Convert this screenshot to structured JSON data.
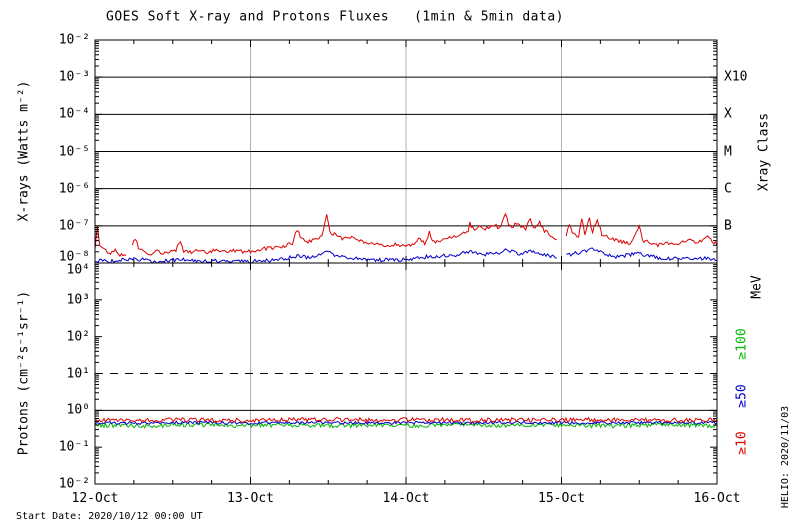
{
  "title": "GOES Soft X-ray and Protons Fluxes   (1min & 5min data)",
  "footer": {
    "start_date": "Start Date: 2020/10/12 00:00 UT",
    "credit": "HELIO: 2020/11/03"
  },
  "colors": {
    "xray_long": "#dd0000",
    "xray_short": "#0000cc",
    "protons_ge10": "#dd0000",
    "protons_ge50": "#0000cc",
    "protons_ge100": "#00bb00",
    "grid": "#b3b3b3",
    "axis": "#000000"
  },
  "chart_data": {
    "type": "line",
    "title": "GOES Soft X-ray and Protons Fluxes   (1min & 5min data)",
    "x_axis": {
      "start_date": "2020/10/12 00:00 UT",
      "span_days": 4,
      "minor_tick_hours": 6,
      "ticks": [
        {
          "label": "12-Oct",
          "day": 0
        },
        {
          "label": "13-Oct",
          "day": 1
        },
        {
          "label": "14-Oct",
          "day": 2
        },
        {
          "label": "15-Oct",
          "day": 3
        },
        {
          "label": "16-Oct",
          "day": 4
        }
      ],
      "gridline_days": [
        1,
        2,
        3
      ]
    },
    "panels": {
      "xray": {
        "ylabel": "X-rays (Watts m⁻²)",
        "right_label": "Xray Class",
        "ylog_range": [
          -8,
          -2
        ],
        "yticks": [
          {
            "label": "10⁻²",
            "log": -2
          },
          {
            "label": "10⁻³",
            "log": -3
          },
          {
            "label": "10⁻⁴",
            "log": -4
          },
          {
            "label": "10⁻⁵",
            "log": -5
          },
          {
            "label": "10⁻⁶",
            "log": -6
          },
          {
            "label": "10⁻⁷",
            "log": -7
          },
          {
            "label": "10⁻⁸",
            "log": -8
          }
        ],
        "class_lines": [
          {
            "label": "X10",
            "log": -3
          },
          {
            "label": "X",
            "log": -4
          },
          {
            "label": "M",
            "log": -5
          },
          {
            "label": "C",
            "log": -6
          },
          {
            "label": "B",
            "log": -7
          }
        ],
        "series": [
          {
            "name": "xray-short-wave",
            "color": "#0000cc",
            "noise": 0.05,
            "points": [
              [
                0.0,
                1.15e-08
              ],
              [
                0.1,
                1.1e-08
              ],
              [
                0.25,
                1.3e-08
              ],
              [
                0.4,
                1.1e-08
              ],
              [
                0.55,
                1.25e-08
              ],
              [
                0.7,
                1.1e-08
              ],
              [
                0.85,
                1.15e-08
              ],
              [
                1.0,
                1.1e-08
              ],
              [
                1.15,
                1.2e-08
              ],
              [
                1.3,
                1.5e-08
              ],
              [
                1.42,
                1.4e-08
              ],
              [
                1.49,
                2.2e-08
              ],
              [
                1.55,
                1.5e-08
              ],
              [
                1.7,
                1.3e-08
              ],
              [
                1.85,
                1.2e-08
              ],
              [
                2.0,
                1.25e-08
              ],
              [
                2.15,
                1.5e-08
              ],
              [
                2.3,
                1.6e-08
              ],
              [
                2.41,
                2e-08
              ],
              [
                2.5,
                1.7e-08
              ],
              [
                2.6,
                1.9e-08
              ],
              [
                2.64,
                2.4e-08
              ],
              [
                2.72,
                1.8e-08
              ],
              [
                2.8,
                2e-08
              ],
              [
                2.9,
                1.6e-08
              ],
              [
                2.97,
                1.4e-08
              ],
              null,
              [
                3.03,
                1.6e-08
              ],
              [
                3.13,
                2e-08
              ],
              [
                3.2,
                2.5e-08
              ],
              [
                3.27,
                1.8e-08
              ],
              [
                3.35,
                1.5e-08
              ],
              [
                3.5,
                1.8e-08
              ],
              [
                3.65,
                1.3e-08
              ],
              [
                3.8,
                1.4e-08
              ],
              [
                3.95,
                1.3e-08
              ],
              [
                4.0,
                1.25e-08
              ]
            ]
          },
          {
            "name": "xray-long-wave",
            "color": "#dd0000",
            "noise": 0.05,
            "points": [
              [
                0.0,
                2.5e-08
              ],
              [
                0.015,
                9e-08
              ],
              [
                0.03,
                3e-08
              ],
              [
                0.06,
                2.2e-08
              ],
              [
                0.1,
                1.8e-08
              ],
              [
                0.13,
                2.4e-08
              ],
              [
                0.16,
                1.7e-08
              ],
              [
                0.2,
                1.6e-08
              ],
              null,
              [
                0.24,
                3e-08
              ],
              [
                0.26,
                4.5e-08
              ],
              [
                0.28,
                2.6e-08
              ],
              [
                0.32,
                2e-08
              ],
              [
                0.36,
                1.8e-08
              ],
              [
                0.4,
                2.2e-08
              ],
              [
                0.44,
                1.8e-08
              ],
              [
                0.48,
                2e-08
              ],
              [
                0.52,
                2.3e-08
              ],
              [
                0.55,
                3.8e-08
              ],
              [
                0.57,
                2.1e-08
              ],
              [
                0.62,
                1.9e-08
              ],
              [
                0.67,
                2.2e-08
              ],
              [
                0.72,
                1.9e-08
              ],
              [
                0.78,
                2.3e-08
              ],
              [
                0.84,
                2e-08
              ],
              [
                0.9,
                2.2e-08
              ],
              [
                0.96,
                2e-08
              ],
              [
                1.02,
                2.1e-08
              ],
              [
                1.08,
                2.4e-08
              ],
              [
                1.15,
                2.6e-08
              ],
              [
                1.22,
                2.8e-08
              ],
              [
                1.27,
                3.5e-08
              ],
              [
                1.3,
                8e-08
              ],
              [
                1.33,
                4.5e-08
              ],
              [
                1.37,
                3.8e-08
              ],
              [
                1.42,
                4.5e-08
              ],
              [
                1.46,
                5e-08
              ],
              [
                1.49,
                2.2e-07
              ],
              [
                1.51,
                7e-08
              ],
              [
                1.55,
                5.5e-08
              ],
              [
                1.6,
                4.5e-08
              ],
              [
                1.64,
                5e-08
              ],
              [
                1.68,
                4.2e-08
              ],
              [
                1.73,
                3.6e-08
              ],
              [
                1.78,
                3.2e-08
              ],
              [
                1.83,
                3.4e-08
              ],
              [
                1.88,
                2.9e-08
              ],
              [
                1.93,
                3.1e-08
              ],
              [
                1.98,
                2.8e-08
              ],
              [
                2.04,
                3e-08
              ],
              [
                2.08,
                4.5e-08
              ],
              [
                2.12,
                3.3e-08
              ],
              [
                2.15,
                6.5e-08
              ],
              [
                2.18,
                3.6e-08
              ],
              [
                2.22,
                4.2e-08
              ],
              [
                2.27,
                4.8e-08
              ],
              [
                2.32,
                5.5e-08
              ],
              [
                2.36,
                6.5e-08
              ],
              [
                2.4,
                7.5e-08
              ],
              [
                2.41,
                1.15e-07
              ],
              [
                2.44,
                7.5e-08
              ],
              [
                2.47,
                1.1e-07
              ],
              [
                2.5,
                8e-08
              ],
              [
                2.54,
                9e-08
              ],
              [
                2.57,
                1.05e-07
              ],
              [
                2.6,
                8.5e-08
              ],
              [
                2.62,
                1.3e-07
              ],
              [
                2.64,
                2.2e-07
              ],
              [
                2.66,
                1.1e-07
              ],
              [
                2.68,
                9e-08
              ],
              [
                2.71,
                1.2e-07
              ],
              [
                2.74,
                9.5e-08
              ],
              [
                2.77,
                8.5e-08
              ],
              [
                2.8,
                1.5e-07
              ],
              [
                2.82,
                8e-08
              ],
              [
                2.86,
                1.2e-07
              ],
              [
                2.89,
                7.5e-08
              ],
              [
                2.92,
                6e-08
              ],
              [
                2.95,
                5e-08
              ],
              [
                2.97,
                4.5e-08
              ],
              null,
              [
                3.03,
                5.5e-08
              ],
              [
                3.05,
                1e-07
              ],
              [
                3.08,
                6e-08
              ],
              [
                3.11,
                5e-08
              ],
              [
                3.13,
                1.4e-07
              ],
              [
                3.15,
                6e-08
              ],
              [
                3.18,
                1.5e-07
              ],
              [
                3.2,
                7e-08
              ],
              [
                3.23,
                1.5e-07
              ],
              [
                3.26,
                6e-08
              ],
              [
                3.3,
                4.8e-08
              ],
              [
                3.35,
                4e-08
              ],
              [
                3.4,
                3.6e-08
              ],
              [
                3.45,
                3.4e-08
              ],
              [
                3.5,
                9.5e-08
              ],
              [
                3.52,
                4.2e-08
              ],
              [
                3.57,
                3.4e-08
              ],
              [
                3.62,
                3.1e-08
              ],
              [
                3.67,
                3.4e-08
              ],
              [
                3.72,
                3.1e-08
              ],
              [
                3.77,
                3.6e-08
              ],
              [
                3.82,
                4.6e-08
              ],
              [
                3.86,
                3.6e-08
              ],
              [
                3.9,
                4e-08
              ],
              [
                3.94,
                5.5e-08
              ],
              [
                3.97,
                3.8e-08
              ],
              [
                4.0,
                3.2e-08
              ]
            ]
          }
        ]
      },
      "protons": {
        "ylabel": "Protons (cm⁻²s⁻¹sr⁻¹)",
        "right_label": "MeV",
        "ylog_range": [
          -2,
          4
        ],
        "yticks": [
          {
            "label": "10⁴",
            "log": 4
          },
          {
            "label": "10³",
            "log": 3
          },
          {
            "label": "10²",
            "log": 2
          },
          {
            "label": "10¹",
            "log": 1
          },
          {
            "label": "10⁰",
            "log": 0
          },
          {
            "label": "10⁻¹",
            "log": -1
          },
          {
            "label": "10⁻²",
            "log": -2
          }
        ],
        "threshold_line": {
          "log": 1,
          "style": "dashed"
        },
        "reference_line": {
          "log": 0,
          "style": "solid"
        },
        "channel_labels": [
          {
            "label": "≥100",
            "color": "#00bb00",
            "log": 1.8
          },
          {
            "label": "≥50",
            "color": "#0000cc",
            "log": 0.38
          },
          {
            "label": "≥10",
            "color": "#dd0000",
            "log": -0.9
          }
        ],
        "series": [
          {
            "name": "protons-ge100MeV",
            "color": "#00bb00",
            "noise": 0.06,
            "points": [
              [
                0,
                0.4
              ],
              [
                0.3,
                0.38
              ],
              [
                0.6,
                0.41
              ],
              [
                0.9,
                0.39
              ],
              [
                1.2,
                0.4
              ],
              [
                1.5,
                0.38
              ],
              [
                1.8,
                0.4
              ],
              [
                2.1,
                0.39
              ],
              [
                2.4,
                0.41
              ],
              [
                2.7,
                0.39
              ],
              [
                3.0,
                0.4
              ],
              [
                3.3,
                0.38
              ],
              [
                3.6,
                0.4
              ],
              [
                4.0,
                0.39
              ]
            ]
          },
          {
            "name": "protons-ge50MeV",
            "color": "#0000cc",
            "noise": 0.04,
            "points": [
              [
                0,
                0.46
              ],
              [
                0.3,
                0.45
              ],
              [
                0.6,
                0.47
              ],
              [
                0.9,
                0.45
              ],
              [
                1.2,
                0.46
              ],
              [
                1.5,
                0.47
              ],
              [
                1.8,
                0.45
              ],
              [
                2.1,
                0.46
              ],
              [
                2.4,
                0.45
              ],
              [
                2.7,
                0.47
              ],
              [
                3.0,
                0.46
              ],
              [
                3.3,
                0.45
              ],
              [
                3.6,
                0.46
              ],
              [
                4.0,
                0.46
              ]
            ]
          },
          {
            "name": "protons-ge10MeV",
            "color": "#dd0000",
            "noise": 0.06,
            "points": [
              [
                0,
                0.55
              ],
              [
                0.3,
                0.53
              ],
              [
                0.6,
                0.56
              ],
              [
                0.9,
                0.54
              ],
              [
                1.2,
                0.55
              ],
              [
                1.5,
                0.57
              ],
              [
                1.8,
                0.54
              ],
              [
                2.1,
                0.56
              ],
              [
                2.4,
                0.53
              ],
              [
                2.7,
                0.55
              ],
              [
                3.0,
                0.54
              ],
              [
                3.3,
                0.56
              ],
              [
                3.6,
                0.53
              ],
              [
                4.0,
                0.55
              ]
            ]
          }
        ]
      }
    }
  }
}
